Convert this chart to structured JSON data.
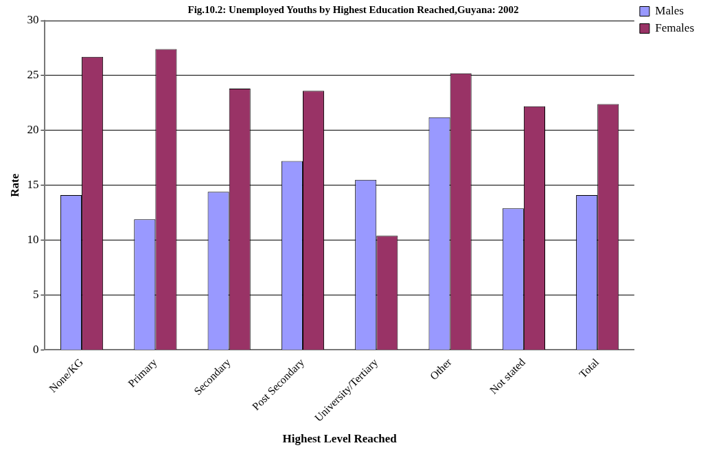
{
  "chart_data": {
    "type": "bar",
    "title": "Fig.10.2: Unemployed Youths by Highest Education Reached,Guyana: 2002",
    "xlabel": "Highest Level Reached",
    "ylabel": "Rate",
    "categories": [
      "None/KG",
      "Primary",
      "Secondary",
      "Post Secondary",
      "University/Tertiary",
      "Other",
      "Not stated",
      "Total"
    ],
    "series": [
      {
        "name": "Males",
        "color": "#9999ff",
        "values": [
          14.1,
          11.9,
          14.4,
          17.2,
          15.5,
          21.2,
          12.9,
          14.1
        ]
      },
      {
        "name": "Females",
        "color": "#993366",
        "values": [
          26.7,
          27.4,
          23.8,
          23.6,
          10.4,
          25.2,
          22.2,
          22.4
        ]
      }
    ],
    "ylim": [
      0,
      30
    ],
    "yticks": [
      0,
      5,
      10,
      15,
      20,
      25,
      30
    ],
    "grid": "y",
    "legend": "top right"
  }
}
